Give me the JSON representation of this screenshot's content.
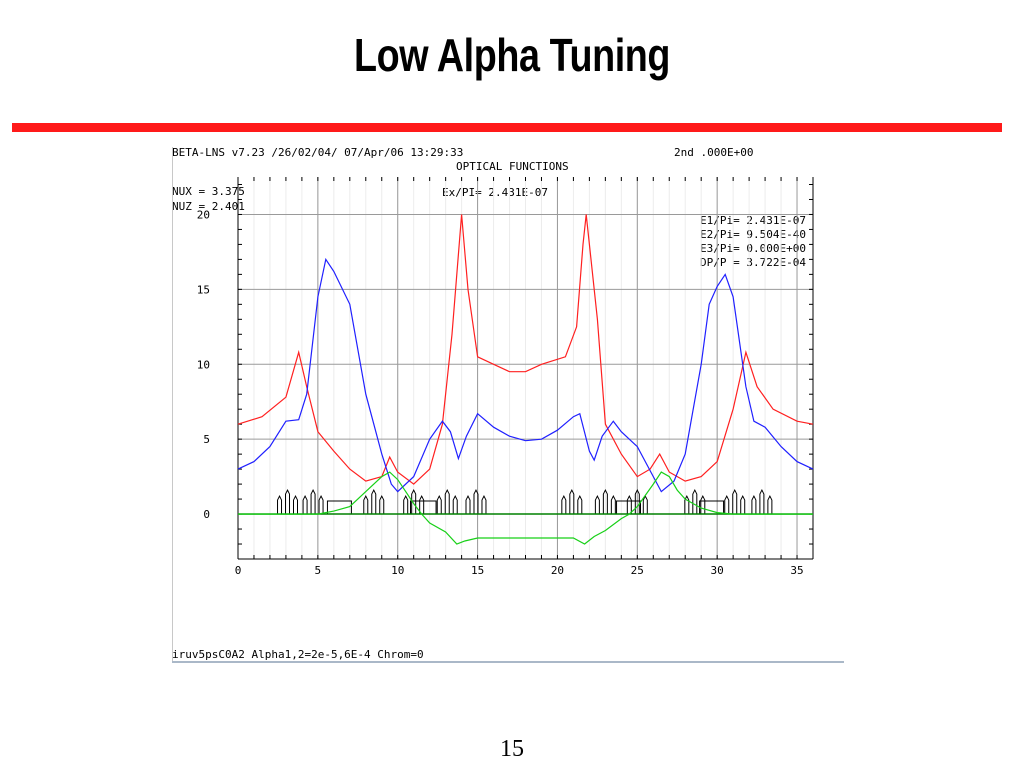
{
  "slide": {
    "title": "Low Alpha Tuning",
    "page_number": "15",
    "title_rule_color": "#ff1a1a"
  },
  "plot_header": {
    "program_line": "BETA-LNS v7.23 /26/02/04/ 07/Apr/06 13:29:33",
    "right_header": "2nd  .000E+00",
    "subtitle": "OPTICAL FUNCTIONS",
    "nux": "NUX  =  3.375",
    "nuz": "NUZ  =  2.401",
    "emittance": "Ex/PI=  2.431E-07",
    "params": [
      "E1/Pi=  2.431E-07",
      "E2/Pi=  9.504E-40",
      "E3/Pi=  0.000E+00",
      "DP/P =  3.722E-04"
    ],
    "footer": "iruv5psC0A2 Alpha1,2=2e-5,6E-4 Chrom=0"
  },
  "chart_data": {
    "type": "line",
    "xlim": [
      0,
      36
    ],
    "ylim": [
      -3,
      22.5
    ],
    "x_ticks": [
      0,
      5,
      10,
      15,
      20,
      25,
      30,
      35
    ],
    "y_ticks": [
      0,
      5,
      10,
      15,
      20
    ],
    "grid": true,
    "series": [
      {
        "color": "#ff2020",
        "points": [
          [
            0,
            6
          ],
          [
            1.5,
            6.5
          ],
          [
            3,
            7.8
          ],
          [
            3.8,
            10.8
          ],
          [
            4.3,
            8.5
          ],
          [
            5,
            5.5
          ],
          [
            6,
            4.2
          ],
          [
            7,
            3
          ],
          [
            8,
            2.2
          ],
          [
            9,
            2.5
          ],
          [
            9.5,
            3.8
          ],
          [
            10,
            2.8
          ],
          [
            11,
            2
          ],
          [
            12,
            3
          ],
          [
            12.8,
            6
          ],
          [
            13.4,
            12
          ],
          [
            14,
            20
          ],
          [
            14.4,
            15
          ],
          [
            15,
            10.5
          ],
          [
            16,
            10
          ],
          [
            17,
            9.5
          ],
          [
            18,
            9.5
          ],
          [
            19,
            10
          ],
          [
            20.5,
            10.5
          ],
          [
            21.2,
            12.5
          ],
          [
            21.6,
            18
          ],
          [
            21.8,
            20
          ],
          [
            22.5,
            13
          ],
          [
            23,
            6
          ],
          [
            24,
            4
          ],
          [
            25,
            2.5
          ],
          [
            25.8,
            3
          ],
          [
            26.4,
            4
          ],
          [
            27,
            2.8
          ],
          [
            28,
            2.2
          ],
          [
            29,
            2.5
          ],
          [
            30,
            3.5
          ],
          [
            31,
            7
          ],
          [
            31.8,
            10.8
          ],
          [
            32.5,
            8.5
          ],
          [
            33.5,
            7
          ],
          [
            35,
            6.2
          ],
          [
            36,
            6
          ]
        ]
      },
      {
        "color": "#2020ff",
        "points": [
          [
            0,
            3
          ],
          [
            1,
            3.5
          ],
          [
            2,
            4.5
          ],
          [
            3,
            6.2
          ],
          [
            3.8,
            6.3
          ],
          [
            4.3,
            8
          ],
          [
            5,
            14.5
          ],
          [
            5.5,
            17
          ],
          [
            6,
            16.2
          ],
          [
            7,
            14
          ],
          [
            8,
            8
          ],
          [
            9,
            4
          ],
          [
            9.6,
            2
          ],
          [
            10,
            1.5
          ],
          [
            11,
            2.5
          ],
          [
            12,
            5
          ],
          [
            12.8,
            6.2
          ],
          [
            13.3,
            5.5
          ],
          [
            13.8,
            3.7
          ],
          [
            14.3,
            5.2
          ],
          [
            15,
            6.7
          ],
          [
            16,
            5.8
          ],
          [
            17,
            5.2
          ],
          [
            18,
            4.9
          ],
          [
            19,
            5
          ],
          [
            20,
            5.6
          ],
          [
            21,
            6.5
          ],
          [
            21.4,
            6.7
          ],
          [
            22,
            4.2
          ],
          [
            22.3,
            3.6
          ],
          [
            22.8,
            5.2
          ],
          [
            23.5,
            6.2
          ],
          [
            24,
            5.5
          ],
          [
            25,
            4.5
          ],
          [
            26,
            2.5
          ],
          [
            26.5,
            1.5
          ],
          [
            27.3,
            2.2
          ],
          [
            28,
            4
          ],
          [
            29,
            10
          ],
          [
            29.5,
            14
          ],
          [
            30,
            15.2
          ],
          [
            30.5,
            16
          ],
          [
            31,
            14.5
          ],
          [
            31.8,
            8.5
          ],
          [
            32.3,
            6.2
          ],
          [
            33,
            5.8
          ],
          [
            34,
            4.5
          ],
          [
            35,
            3.5
          ],
          [
            36,
            3
          ]
        ]
      },
      {
        "color": "#18d018",
        "points": [
          [
            0,
            0
          ],
          [
            5,
            0
          ],
          [
            6,
            0.2
          ],
          [
            7,
            0.5
          ],
          [
            8,
            1.5
          ],
          [
            9,
            2.5
          ],
          [
            9.5,
            2.8
          ],
          [
            10,
            2.3
          ],
          [
            10.5,
            1.5
          ],
          [
            11,
            0.7
          ],
          [
            11.5,
            0
          ],
          [
            12,
            -0.6
          ],
          [
            13,
            -1.2
          ],
          [
            13.7,
            -2
          ],
          [
            14.2,
            -1.8
          ],
          [
            15,
            -1.6
          ],
          [
            16,
            -1.6
          ],
          [
            18,
            -1.6
          ],
          [
            20,
            -1.6
          ],
          [
            21,
            -1.6
          ],
          [
            21.7,
            -2
          ],
          [
            22.3,
            -1.5
          ],
          [
            23,
            -1.1
          ],
          [
            24,
            -0.3
          ],
          [
            24.5,
            0
          ],
          [
            25,
            0.5
          ],
          [
            26,
            2
          ],
          [
            26.5,
            2.8
          ],
          [
            27,
            2.5
          ],
          [
            27.5,
            1.6
          ],
          [
            28,
            1
          ],
          [
            29,
            0.4
          ],
          [
            30,
            0.1
          ],
          [
            31,
            0
          ],
          [
            36,
            0
          ]
        ]
      }
    ],
    "baseline_color": "#008000",
    "lattice_color": "#000000"
  }
}
